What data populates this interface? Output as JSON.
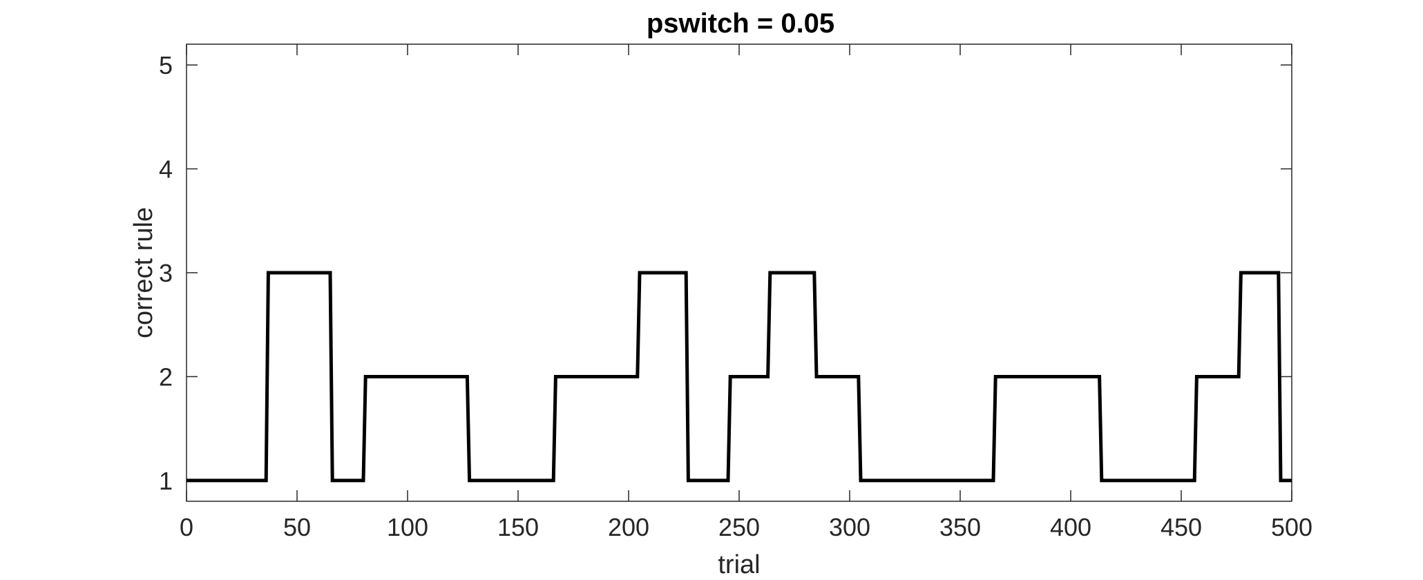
{
  "chart_data": {
    "type": "line",
    "title": "pswitch = 0.05",
    "xlabel": "trial",
    "ylabel": "correct rule",
    "xlim": [
      0,
      500
    ],
    "ylim": [
      0.8,
      5.2
    ],
    "xticks": [
      0,
      50,
      100,
      150,
      200,
      250,
      300,
      350,
      400,
      450,
      500
    ],
    "yticks": [
      1,
      2,
      3,
      4,
      5
    ],
    "grid": false,
    "legend": "none",
    "colors": {
      "line": "#000000",
      "axes": "#262626"
    },
    "series": [
      {
        "x": [
          0,
          36,
          37,
          65,
          66,
          80,
          81,
          127,
          128,
          166,
          167,
          204,
          205,
          226,
          227,
          245,
          246,
          263,
          264,
          284,
          285,
          304,
          305,
          365,
          366,
          413,
          414,
          456,
          457,
          476,
          477,
          494,
          495,
          500
        ],
        "y": [
          1,
          1,
          3,
          3,
          1,
          1,
          2,
          2,
          1,
          1,
          2,
          2,
          3,
          3,
          1,
          1,
          2,
          2,
          3,
          3,
          2,
          2,
          1,
          1,
          2,
          2,
          1,
          1,
          2,
          2,
          3,
          3,
          1,
          1
        ]
      }
    ]
  }
}
